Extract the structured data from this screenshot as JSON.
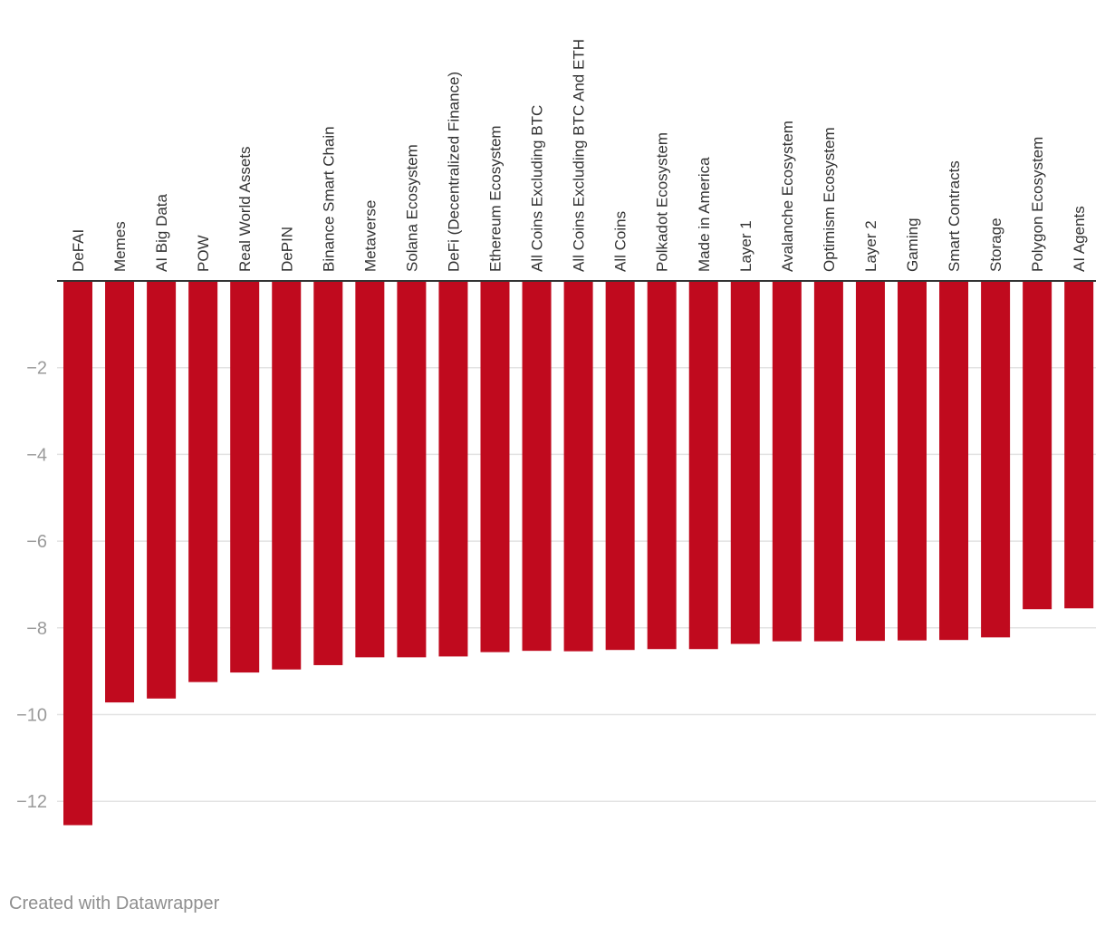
{
  "chart_data": {
    "type": "bar",
    "categories": [
      "DeFAI",
      "Memes",
      "AI Big Data",
      "POW",
      "Real World Assets",
      "DePIN",
      "Binance Smart Chain",
      "Metaverse",
      "Solana Ecosystem",
      "DeFi (Decentralized Finance)",
      "Ethereum Ecosystem",
      "All Coins Excluding BTC",
      "All Coins Excluding BTC And ETH",
      "All Coins",
      "Polkadot Ecosystem",
      "Made in America",
      "Layer 1",
      "Avalanche Ecosystem",
      "Optimism Ecosystem",
      "Layer 2",
      "Gaming",
      "Smart Contracts",
      "Storage",
      "Polygon Ecosystem",
      "AI Agents"
    ],
    "values": [
      -12.55,
      -9.72,
      -9.63,
      -9.25,
      -9.03,
      -8.96,
      -8.86,
      -8.68,
      -8.68,
      -8.66,
      -8.56,
      -8.53,
      -8.54,
      -8.51,
      -8.49,
      -8.49,
      -8.37,
      -8.31,
      -8.31,
      -8.3,
      -8.29,
      -8.28,
      -8.22,
      -7.57,
      -7.55
    ],
    "yticks": [
      -2,
      -4,
      -6,
      -8,
      -10,
      -12
    ],
    "ylim": [
      -12.55,
      0
    ],
    "grid": true,
    "bar_color": "#c00a1e"
  },
  "footer": {
    "credit": "Created with Datawrapper"
  }
}
